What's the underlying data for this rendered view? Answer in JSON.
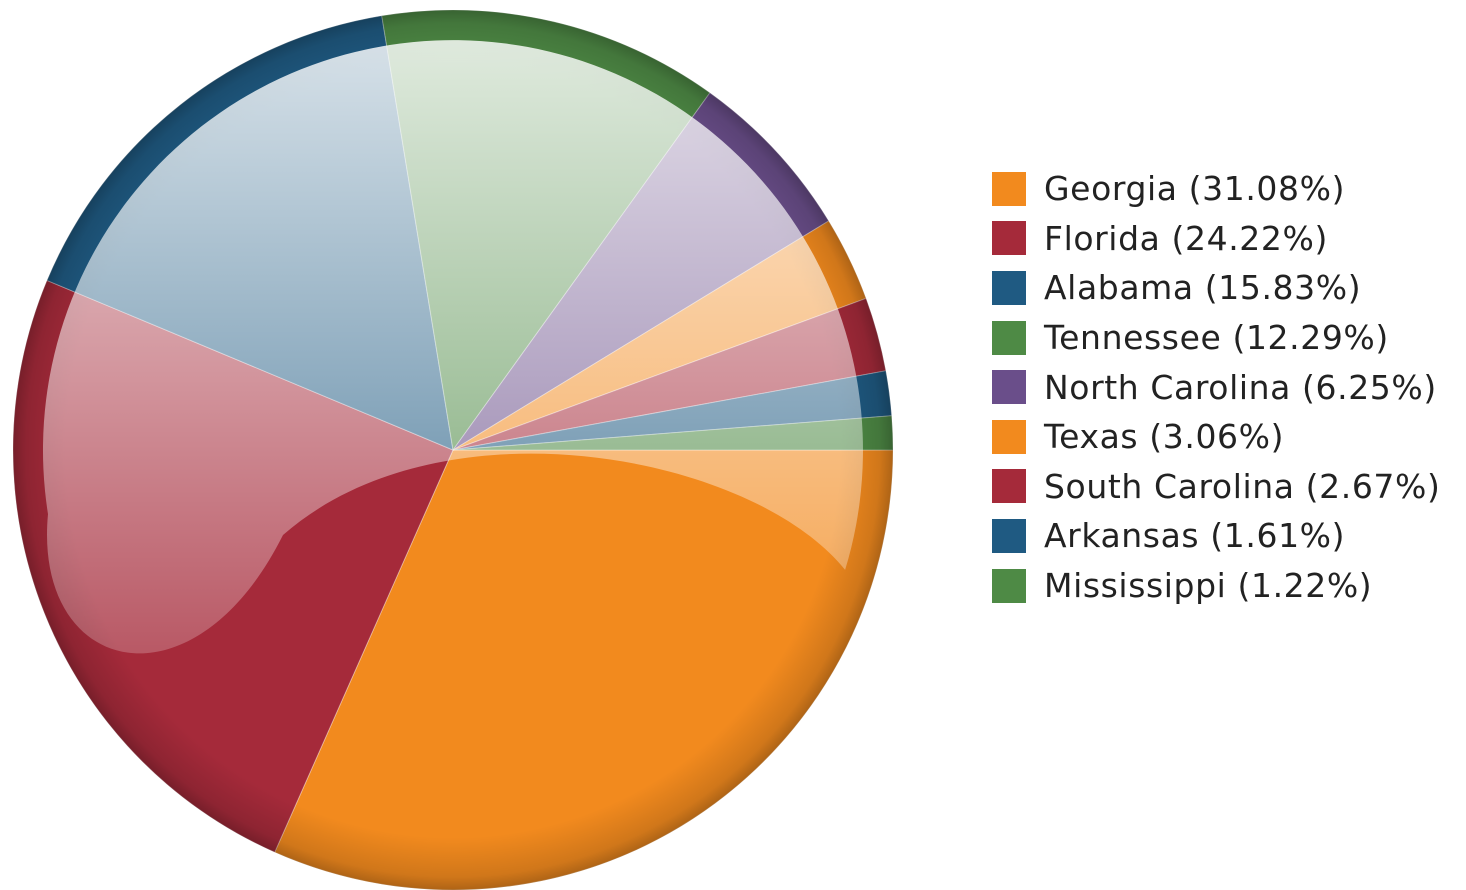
{
  "chart_data": {
    "type": "pie",
    "categories": [
      "Georgia",
      "Florida",
      "Alabama",
      "Tennessee",
      "North Carolina",
      "Texas",
      "South Carolina",
      "Arkansas",
      "Mississippi"
    ],
    "values": [
      31.08,
      24.22,
      15.83,
      12.29,
      6.25,
      3.06,
      2.67,
      1.61,
      1.22
    ],
    "unit": "%",
    "colors": [
      "#f28a1e",
      "#a52a3a",
      "#1f5a82",
      "#4e8a45",
      "#6a4e8a",
      "#f28a1e",
      "#a52a3a",
      "#1f5a82",
      "#4e8a45"
    ],
    "legend_labels": [
      "Georgia (31.08%)",
      "Florida (24.22%)",
      "Alabama (15.83%)",
      "Tennessee (12.29%)",
      "North Carolina (6.25%)",
      "Texas (3.06%)",
      "South Carolina (2.67%)",
      "Arkansas (1.61%)",
      "Mississippi (1.22%)"
    ],
    "legend_position": "right",
    "start_angle_deg": 0,
    "direction": "clockwise"
  }
}
